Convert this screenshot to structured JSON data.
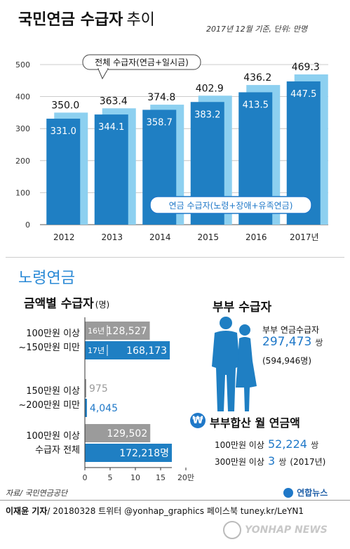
{
  "top": {
    "title_main": "국민연금 수급자",
    "title_sub": "추이",
    "note": "2017년 12월 기준, 단위: 만명",
    "callout_total": "전체 수급자(연금+일시금)",
    "callout_pension": "연금 수급자(노령+장애+유족연금)"
  },
  "section2": {
    "title": "노령연금",
    "subtitle": "금액별 수급자",
    "subtitle_unit": "(명)"
  },
  "couple": {
    "title": "부부 수급자",
    "label": "부부 연금수급자",
    "value": "297,473",
    "unit": "쌍",
    "people": "(594,946명)",
    "combined_title": "부부합산 월 연금액",
    "won_symbol": "₩",
    "rows": [
      {
        "label": "100만원 이상",
        "value": "52,224",
        "unit": "쌍",
        "extra": ""
      },
      {
        "label": "300만원 이상",
        "value": "3",
        "unit": "쌍",
        "extra": "(2017년)"
      }
    ]
  },
  "footer": {
    "source": "자료/ 국민연금공단",
    "logo": "연합뉴스",
    "credit": "이재윤 기자",
    "credit_rest": "/ 20180328  트위터 @yonhap_graphics  페이스북 tuney.kr/LeYN1",
    "watermark": "YONHAP NEWS"
  },
  "colors": {
    "light_bar": "#8dd0f0",
    "dark_bar": "#1f7fc3",
    "gray_bar": "#9b9b9b",
    "accent_blue": "#1f78c8",
    "section_blue": "#2b8ad6"
  },
  "chart_data": [
    {
      "type": "bar",
      "categories": [
        "2012",
        "2013",
        "2014",
        "2015",
        "2016",
        "2017년"
      ],
      "series": [
        {
          "name": "전체 수급자(연금+일시금)",
          "values": [
            350.0,
            363.4,
            374.8,
            402.9,
            436.2,
            469.3
          ]
        },
        {
          "name": "연금 수급자(노령+장애+유족연금)",
          "values": [
            331.0,
            344.1,
            358.7,
            383.2,
            413.5,
            447.5
          ]
        }
      ],
      "value_labels": [
        [
          "350.0",
          "363.4",
          "374.8",
          "402.9",
          "436.2",
          "469.3"
        ],
        [
          "331.0",
          "344.1",
          "358.7",
          "383.2",
          "413.5",
          "447.5"
        ]
      ],
      "ylim": [
        0,
        500
      ],
      "yticks": [
        "0",
        "100",
        "200",
        "300",
        "400",
        "500"
      ],
      "grid": true
    },
    {
      "type": "bar",
      "orientation": "horizontal",
      "categories": [
        [
          "100만원 이상",
          "~150만원 미만"
        ],
        [
          "150만원 이상",
          "~200만원 미만"
        ],
        [
          "100만원 이상",
          "수급자 전체"
        ]
      ],
      "series": [
        {
          "name": "16년",
          "values": [
            128527,
            975,
            129502
          ],
          "labels": [
            "128,527",
            "975",
            "129,502"
          ]
        },
        {
          "name": "17년",
          "values": [
            168173,
            4045,
            172218
          ],
          "labels": [
            "168,173",
            "4,045",
            "172,218명"
          ]
        }
      ],
      "xlim": [
        0,
        200000
      ],
      "xticks": [
        "0",
        "5",
        "10",
        "15",
        "20만"
      ]
    }
  ]
}
